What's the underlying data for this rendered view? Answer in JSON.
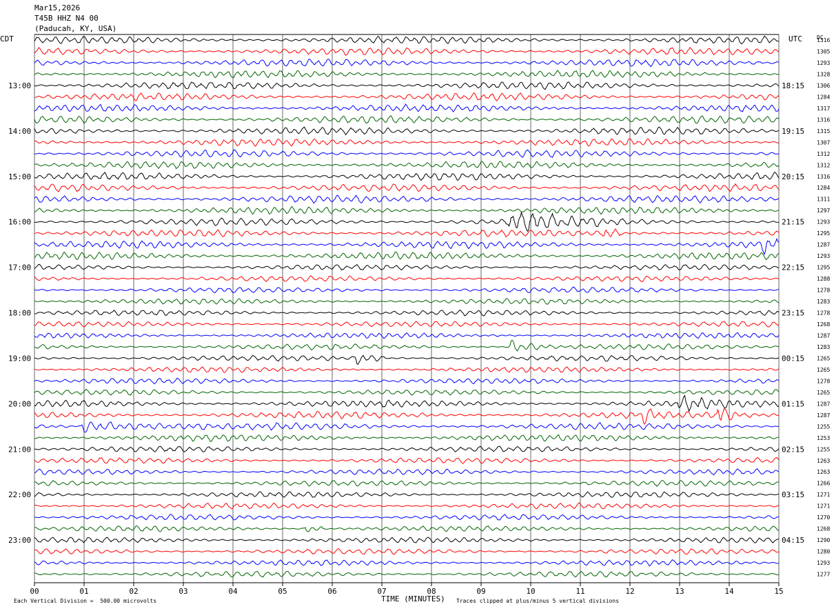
{
  "header": {
    "date": "Mar15,2026",
    "station": "T45B HHZ N4 00",
    "location": "(Paducah, KY, USA)"
  },
  "left_tz": "CDT",
  "right_tz": "UTC",
  "dc_label": "DC",
  "footer": {
    "scale_note": "Each Vertical Division =  500.00 microvolts",
    "xlabel": "TIME (MINUTES)",
    "clip_note": "Traces clipped at plus/minus 5 vertical divisions"
  },
  "chart_data": {
    "type": "line",
    "title": "",
    "xlabel": "TIME (MINUTES)",
    "x_ticks": [
      "00",
      "01",
      "02",
      "03",
      "04",
      "05",
      "06",
      "07",
      "08",
      "09",
      "10",
      "11",
      "12",
      "13",
      "14",
      "15"
    ],
    "xlim": [
      0,
      15
    ],
    "trace_minutes": 15,
    "traces_per_hour": 4,
    "trace_colors": [
      "#000000",
      "#ff0000",
      "#0000ff",
      "#006400"
    ],
    "left_hour_labels": [
      "13:00",
      "14:00",
      "15:00",
      "16:00",
      "17:00",
      "18:00",
      "19:00",
      "20:00",
      "21:00",
      "22:00",
      "23:00"
    ],
    "left_label_start_row": 4,
    "right_hour_labels": [
      "18:15",
      "19:15",
      "20:15",
      "21:15",
      "22:15",
      "23:15",
      "00:15",
      "01:15",
      "02:15",
      "03:15",
      "04:15"
    ],
    "right_label_start_row": 4,
    "dc_offsets": [
      "1316",
      "1305",
      "1293",
      "1328",
      "1306",
      "1284",
      "1317",
      "1316",
      "1315",
      "1307",
      "1312",
      "1312",
      "1316",
      "1284",
      "1311",
      "1297",
      "1293",
      "1295",
      "1287",
      "1293",
      "1295",
      "1288",
      "1278",
      "1283",
      "1278",
      "1268",
      "1287",
      "1283",
      "1265",
      "1265",
      "1278",
      "1265",
      "1287",
      "1287",
      "1255",
      "1253",
      "1255",
      "1263",
      "1263",
      "1266",
      "1271",
      "1271",
      "1270",
      "1268",
      "1290",
      "1280",
      "1293",
      "1277"
    ],
    "grid": "vertical lines at each minute",
    "events": [
      {
        "row": 16,
        "minute": 9.6,
        "duration_min": 1.8,
        "strength": 2.0
      },
      {
        "row": 17,
        "minute": 11.5,
        "duration_min": 0.3,
        "strength": 1.4
      },
      {
        "row": 18,
        "minute": 14.7,
        "duration_min": 0.4,
        "strength": 1.4
      },
      {
        "row": 27,
        "minute": 9.6,
        "duration_min": 0.8,
        "strength": 1.6
      },
      {
        "row": 28,
        "minute": 6.5,
        "duration_min": 0.6,
        "strength": 1.5
      },
      {
        "row": 32,
        "minute": 13.0,
        "duration_min": 1.2,
        "strength": 1.3
      },
      {
        "row": 33,
        "minute": 12.3,
        "duration_min": 0.3,
        "strength": 1.5
      },
      {
        "row": 33,
        "minute": 13.8,
        "duration_min": 0.4,
        "strength": 2.0
      },
      {
        "row": 34,
        "minute": 1.0,
        "duration_min": 2.5,
        "strength": 1.2
      },
      {
        "row": 43,
        "minute": 5.5,
        "duration_min": 0.3,
        "strength": 1.3
      }
    ]
  }
}
